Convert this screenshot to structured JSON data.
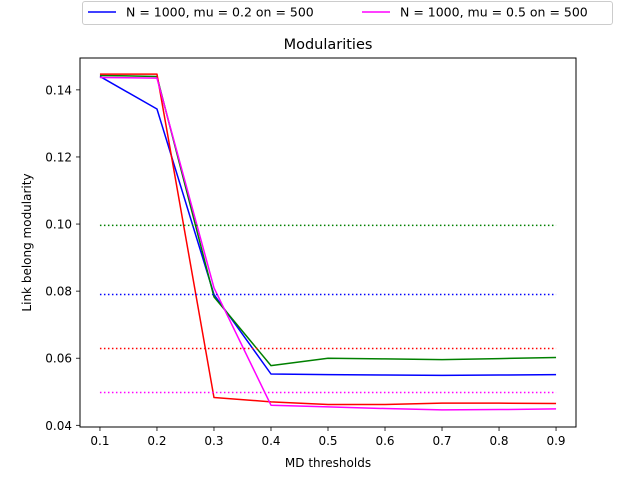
{
  "chart_data": {
    "type": "line",
    "title": "Modularities",
    "xlabel": "MD thresholds",
    "ylabel": "Link belong modularity",
    "xlim": [
      0.065,
      0.935
    ],
    "ylim": [
      0.0395,
      0.1495
    ],
    "x_ticks": [
      "0.1",
      "0.2",
      "0.3",
      "0.4",
      "0.5",
      "0.6",
      "0.7",
      "0.8",
      "0.9"
    ],
    "y_ticks": [
      "0.04",
      "0.06",
      "0.08",
      "0.10",
      "0.12",
      "0.14"
    ],
    "grid": false,
    "legend_position": "top-center, above axes",
    "legend": [
      {
        "label": "N = 1000, mu = 0.2 on = 500",
        "color": "#0000ff"
      },
      {
        "label": "N = 1000, mu = 0.5 on = 500",
        "color": "#ff00ff"
      }
    ],
    "series": [
      {
        "color": "#0000ff",
        "style": "solid",
        "x": [
          0.1,
          0.2,
          0.3,
          0.4,
          0.5,
          0.6,
          0.7,
          0.8,
          0.9
        ],
        "y": [
          0.144,
          0.1343,
          0.079,
          0.0553,
          0.0551,
          0.055,
          0.0549,
          0.055,
          0.0551
        ]
      },
      {
        "color": "#008000",
        "style": "solid",
        "x": [
          0.1,
          0.2,
          0.3,
          0.4,
          0.5,
          0.6,
          0.7,
          0.8,
          0.9
        ],
        "y": [
          0.1443,
          0.144,
          0.0783,
          0.0578,
          0.06,
          0.0598,
          0.0596,
          0.0599,
          0.0602
        ]
      },
      {
        "color": "#ff0000",
        "style": "solid",
        "x": [
          0.1,
          0.2,
          0.3,
          0.4,
          0.5,
          0.6,
          0.7,
          0.8,
          0.9
        ],
        "y": [
          0.1447,
          0.1447,
          0.0483,
          0.047,
          0.0462,
          0.0462,
          0.0466,
          0.0466,
          0.0465
        ]
      },
      {
        "color": "#ff00ff",
        "style": "solid",
        "x": [
          0.1,
          0.2,
          0.3,
          0.4,
          0.5,
          0.6,
          0.7,
          0.8,
          0.9
        ],
        "y": [
          0.1437,
          0.1435,
          0.081,
          0.046,
          0.0455,
          0.045,
          0.0446,
          0.0447,
          0.0449
        ]
      },
      {
        "color": "#008000",
        "style": "dotted",
        "x": [
          0.1,
          0.9
        ],
        "y": [
          0.0996,
          0.0996
        ]
      },
      {
        "color": "#0000ff",
        "style": "dotted",
        "x": [
          0.1,
          0.9
        ],
        "y": [
          0.079,
          0.079
        ]
      },
      {
        "color": "#ff0000",
        "style": "dotted",
        "x": [
          0.1,
          0.9
        ],
        "y": [
          0.0629,
          0.0629
        ]
      },
      {
        "color": "#ff00ff",
        "style": "dotted",
        "x": [
          0.1,
          0.9
        ],
        "y": [
          0.0498,
          0.0498
        ]
      }
    ]
  }
}
